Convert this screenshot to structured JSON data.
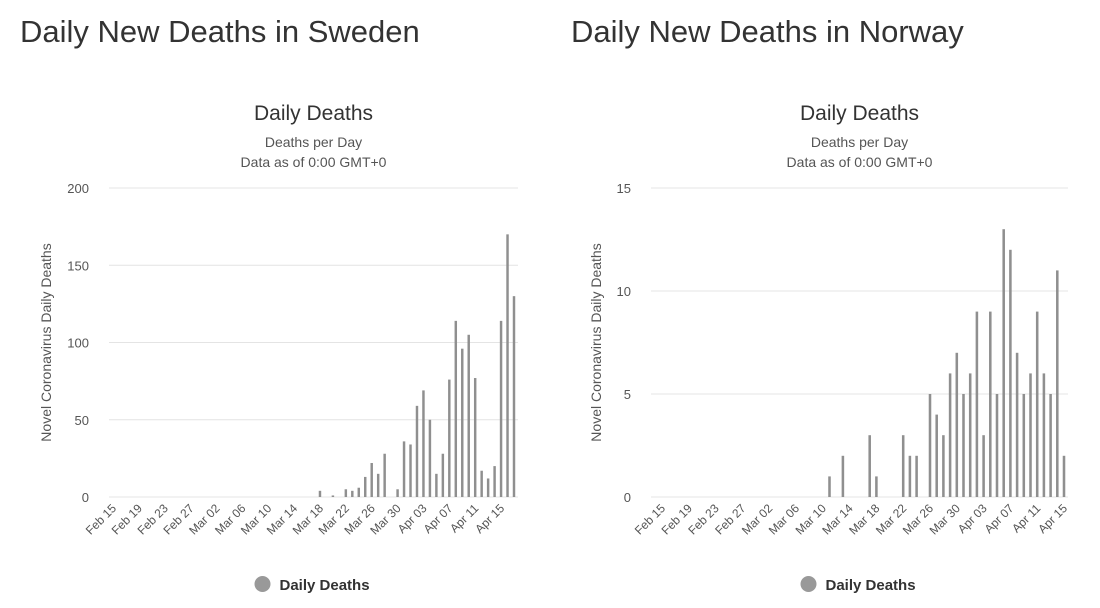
{
  "page_titles": [
    "Daily New Deaths in Sweden",
    "Daily New Deaths in Norway"
  ],
  "chart_data": [
    {
      "type": "bar",
      "title": "Daily Deaths",
      "subtitle": [
        "Deaths per Day",
        "Data as of 0:00 GMT+0"
      ],
      "ylabel": "Novel Coronavirus Daily Deaths",
      "xlabel": "",
      "ylim": [
        0,
        200
      ],
      "yticks": [
        0,
        50,
        100,
        150,
        200
      ],
      "xtick_labels": [
        "Feb 15",
        "Feb 19",
        "Feb 23",
        "Feb 27",
        "Mar 02",
        "Mar 06",
        "Mar 10",
        "Mar 14",
        "Mar 18",
        "Mar 22",
        "Mar 26",
        "Mar 30",
        "Apr 03",
        "Apr 07",
        "Apr 11",
        "Apr 15"
      ],
      "grid": true,
      "legend": {
        "label": "Daily Deaths",
        "position": "bottom",
        "color": "#999999"
      },
      "bar_color": "#8f8f8f",
      "series": [
        {
          "name": "Daily Deaths",
          "values": [
            0,
            0,
            0,
            0,
            0,
            0,
            0,
            0,
            0,
            0,
            0,
            0,
            0,
            0,
            0,
            0,
            0,
            0,
            0,
            0,
            0,
            0,
            0,
            0,
            0,
            0,
            0,
            0,
            0,
            0,
            0,
            0,
            4,
            0,
            1,
            0,
            5,
            4,
            6,
            13,
            22,
            15,
            28,
            0,
            5,
            36,
            34,
            59,
            69,
            50,
            15,
            28,
            76,
            114,
            96,
            105,
            77,
            17,
            12,
            20,
            114,
            170,
            130
          ]
        }
      ]
    },
    {
      "type": "bar",
      "title": "Daily Deaths",
      "subtitle": [
        "Deaths per Day",
        "Data as of 0:00 GMT+0"
      ],
      "ylabel": "Novel Coronavirus Daily Deaths",
      "xlabel": "",
      "ylim": [
        0,
        15
      ],
      "yticks": [
        0,
        5,
        10,
        15
      ],
      "xtick_labels": [
        "Feb 15",
        "Feb 19",
        "Feb 23",
        "Feb 27",
        "Mar 02",
        "Mar 06",
        "Mar 10",
        "Mar 14",
        "Mar 18",
        "Mar 22",
        "Mar 26",
        "Mar 30",
        "Apr 03",
        "Apr 07",
        "Apr 11",
        "Apr 15"
      ],
      "grid": true,
      "legend": {
        "label": "Daily Deaths",
        "position": "bottom",
        "color": "#999999"
      },
      "bar_color": "#8f8f8f",
      "series": [
        {
          "name": "Daily Deaths",
          "values": [
            0,
            0,
            0,
            0,
            0,
            0,
            0,
            0,
            0,
            0,
            0,
            0,
            0,
            0,
            0,
            0,
            0,
            0,
            0,
            0,
            0,
            0,
            0,
            0,
            0,
            1,
            0,
            2,
            0,
            0,
            0,
            3,
            1,
            0,
            0,
            0,
            3,
            2,
            2,
            0,
            5,
            4,
            3,
            6,
            7,
            5,
            6,
            9,
            3,
            9,
            5,
            13,
            12,
            7,
            5,
            6,
            9,
            6,
            5,
            11,
            2
          ]
        }
      ]
    }
  ]
}
